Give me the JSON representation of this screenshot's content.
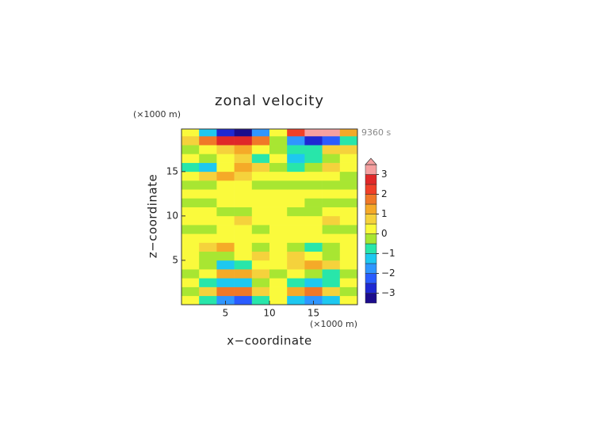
{
  "chart_data": {
    "type": "heatmap",
    "title": "zonal velocity",
    "x_unit": "(×1000 m)",
    "y_unit": "(×1000 m)",
    "time_label": "9360 s",
    "xlabel": "x−coordinate",
    "ylabel": "z−coordinate",
    "xlim": [
      0,
      20
    ],
    "ylim": [
      0,
      19.8
    ],
    "xticks": [
      5,
      10,
      15
    ],
    "yticks": [
      5,
      10,
      15
    ],
    "x": [
      1,
      3,
      5,
      7,
      9,
      11,
      13,
      15,
      17,
      19
    ],
    "y": [
      0.5,
      1.5,
      2.5,
      3.5,
      4.5,
      5.5,
      6.5,
      7.5,
      8.5,
      9.5,
      10.5,
      11.5,
      12.5,
      13.5,
      14.5,
      15.5,
      16.5,
      17.5,
      18.5,
      19.5
    ],
    "z": [
      [
        0.3,
        -1,
        -2,
        -2.3,
        -1,
        0.3,
        -1.5,
        -2,
        -1.5,
        0.3
      ],
      [
        -0.3,
        0.8,
        1.5,
        1.5,
        0.5,
        0.3,
        1,
        1.5,
        0.8,
        -0.3
      ],
      [
        0.3,
        -0.8,
        -1.5,
        -1.5,
        -0.5,
        0.3,
        -1,
        -1.5,
        -1,
        0.3
      ],
      [
        -0.3,
        0.3,
        1,
        1.2,
        0.5,
        -0.3,
        0.3,
        -0.3,
        -0.8,
        -0.3
      ],
      [
        0.3,
        -0.3,
        -1.2,
        -0.8,
        0.3,
        0.3,
        0.8,
        1,
        0.8,
        0.3
      ],
      [
        0.3,
        -0.3,
        -0.3,
        0.3,
        0.8,
        0.3,
        0.8,
        0.3,
        -0.3,
        0.3
      ],
      [
        0.3,
        0.8,
        1,
        0.3,
        -0.3,
        0.3,
        -0.3,
        -0.8,
        -0.3,
        0.3
      ],
      [
        0.3,
        0.3,
        0.3,
        0.3,
        0.3,
        0.3,
        0.3,
        0.3,
        0.3,
        0.3
      ],
      [
        -0.3,
        -0.3,
        0.3,
        0.3,
        -0.3,
        0.3,
        0.3,
        0.3,
        -0.3,
        -0.3
      ],
      [
        0.3,
        0.3,
        0.3,
        0.8,
        0.3,
        0.3,
        0.3,
        0.3,
        0.8,
        0.3
      ],
      [
        0.3,
        0.3,
        -0.3,
        -0.3,
        0.3,
        0.3,
        -0.3,
        -0.3,
        0.3,
        0.3
      ],
      [
        -0.3,
        -0.3,
        0.3,
        0.3,
        0.3,
        0.3,
        0.3,
        -0.3,
        -0.3,
        -0.3
      ],
      [
        0.3,
        0.3,
        0.3,
        0.3,
        0.3,
        0.3,
        0.3,
        0.3,
        0.3,
        0.3
      ],
      [
        -0.3,
        -0.3,
        0.3,
        0.3,
        -0.3,
        -0.3,
        -0.3,
        -0.3,
        -0.3,
        -0.3
      ],
      [
        0.3,
        0.5,
        1,
        0.8,
        0.3,
        0.3,
        0.3,
        0.3,
        0.3,
        -0.3
      ],
      [
        -0.8,
        -1.2,
        0.3,
        1,
        0.5,
        -0.3,
        -1,
        -0.5,
        0.8,
        0.3
      ],
      [
        0.3,
        -0.3,
        0.3,
        0.5,
        -0.8,
        0.3,
        -1.2,
        -0.8,
        -0.3,
        0.3
      ],
      [
        -0.3,
        0.3,
        0.8,
        1,
        0.3,
        -0.3,
        -0.8,
        -1,
        0.8,
        0.5
      ],
      [
        0.5,
        1.5,
        2.5,
        2.8,
        1.5,
        -0.5,
        -2,
        -2.8,
        -2.5,
        -1
      ],
      [
        0.3,
        -1.5,
        -3,
        -3.2,
        -2,
        0.3,
        2,
        3.2,
        3,
        1
      ]
    ],
    "levels": [
      -3.5,
      -3,
      -2.5,
      -2,
      -1.5,
      -1,
      -0.5,
      0,
      0.5,
      1,
      1.5,
      2,
      2.5,
      3,
      3.5
    ],
    "colors": [
      "#1c0c8c",
      "#1e28d2",
      "#2a5cff",
      "#2f96ff",
      "#1ec8f0",
      "#28e6aa",
      "#a8e632",
      "#fafa3c",
      "#f5d23c",
      "#f5aa28",
      "#f07828",
      "#f04028",
      "#e02828",
      "#f5a0a0"
    ],
    "cbticks": [
      {
        "value": -3,
        "label": "−3"
      },
      {
        "value": -2,
        "label": "−2"
      },
      {
        "value": -1,
        "label": "−1"
      },
      0,
      1,
      2,
      3
    ]
  }
}
